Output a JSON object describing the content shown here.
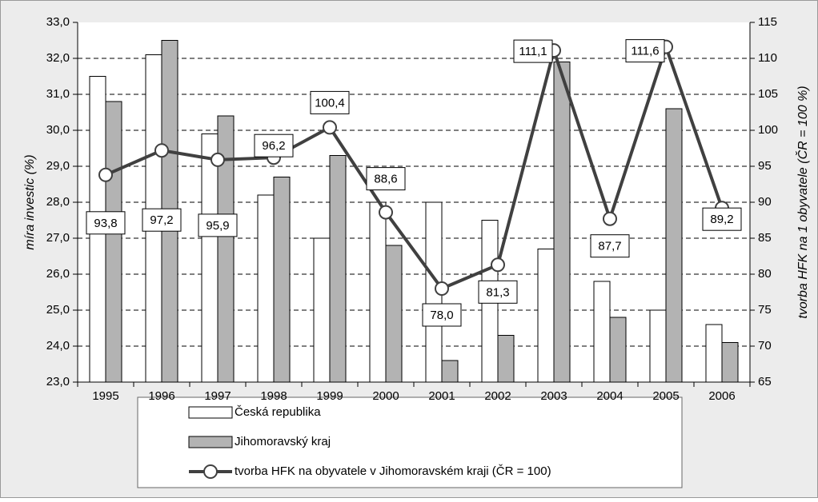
{
  "chart_data": {
    "type": "bar-line",
    "categories": [
      "1995",
      "1996",
      "1997",
      "1998",
      "1999",
      "2000",
      "2001",
      "2002",
      "2003",
      "2004",
      "2005",
      "2006"
    ],
    "series": [
      {
        "name": "Česká republika",
        "color": "#ffffff",
        "values": [
          31.5,
          32.1,
          29.9,
          28.2,
          27.0,
          28.0,
          28.0,
          27.5,
          26.7,
          25.8,
          25.0,
          24.6
        ]
      },
      {
        "name": "Jihomoravský kraj",
        "color": "#b3b3b3",
        "values": [
          30.8,
          32.5,
          30.4,
          28.7,
          29.3,
          26.8,
          23.6,
          24.3,
          31.9,
          24.8,
          30.6,
          24.1
        ]
      },
      {
        "name": "tvorba HFK na obyvatele v Jihomoravském kraji (ČR = 100)",
        "color": "#404040",
        "axis": "y2",
        "type": "line",
        "values": [
          93.8,
          97.2,
          95.9,
          96.2,
          100.4,
          88.6,
          78.0,
          81.3,
          111.1,
          87.7,
          111.6,
          89.2
        ],
        "value_labels": [
          "93,8",
          "97,2",
          "95,9",
          "96,2",
          "100,4",
          "88,6",
          "78,0",
          "81,3",
          "111,1",
          "87,7",
          "111,6",
          "89,2"
        ]
      }
    ],
    "ylabel": "míra investic (%)",
    "y2label": "tvorba HFK na 1 obyvatele (ČR = 100 %)",
    "ylim": [
      23,
      33
    ],
    "yticks": [
      {
        "value": 23,
        "label": "23,0"
      },
      {
        "value": 24,
        "label": "24,0"
      },
      {
        "value": 25,
        "label": "25,0"
      },
      {
        "value": 26,
        "label": "26,0"
      },
      {
        "value": 27,
        "label": "27,0"
      },
      {
        "value": 28,
        "label": "28,0"
      },
      {
        "value": 29,
        "label": "29,0"
      },
      {
        "value": 30,
        "label": "30,0"
      },
      {
        "value": 31,
        "label": "31,0"
      },
      {
        "value": 32,
        "label": "32,0"
      },
      {
        "value": 33,
        "label": "33,0"
      }
    ],
    "y2lim": [
      65,
      115
    ],
    "y2ticks": [
      65,
      70,
      75,
      80,
      85,
      90,
      95,
      100,
      105,
      110,
      115
    ],
    "grid": true,
    "legend": "bottom"
  }
}
